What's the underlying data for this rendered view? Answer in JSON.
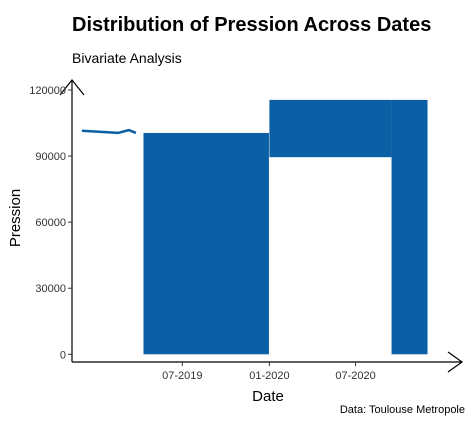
{
  "chart_data": {
    "type": "line",
    "title": "Distribution of Pression Across Dates",
    "subtitle": "Bivariate Analysis",
    "caption": "Data: Toulouse Metropole",
    "xlabel": "Date",
    "ylabel": "Pression",
    "x_type": "date",
    "xlim": [
      "2018-11-10",
      "2020-12-20"
    ],
    "ylim": [
      -3500,
      120000
    ],
    "x_ticks": [
      {
        "date": "2019-07-01",
        "label": "07-2019"
      },
      {
        "date": "2020-01-01",
        "label": "01-2020"
      },
      {
        "date": "2020-07-01",
        "label": "07-2020"
      }
    ],
    "y_ticks": [
      0,
      30000,
      60000,
      90000,
      120000
    ],
    "y_tick_labels": [
      "0",
      "30000",
      "60000",
      "90000",
      "120000"
    ],
    "grid": false,
    "legend": "none",
    "color": "#0b5fa5",
    "series": [
      {
        "points": [
          [
            "2018-12-01",
            101500
          ],
          [
            "2019-02-15",
            100500
          ],
          [
            "2019-03-10",
            101800
          ],
          [
            "2019-03-25",
            100500
          ]
        ],
        "bands": [
          {
            "start": "2019-04-10",
            "end": "2019-12-31",
            "low": 0,
            "high": 100500
          },
          {
            "start": "2020-01-01",
            "end": "2020-09-15",
            "low": 89500,
            "high": 115500
          },
          {
            "start": "2020-09-15",
            "end": "2020-11-30",
            "low": 0,
            "high": 115500
          }
        ]
      }
    ]
  }
}
